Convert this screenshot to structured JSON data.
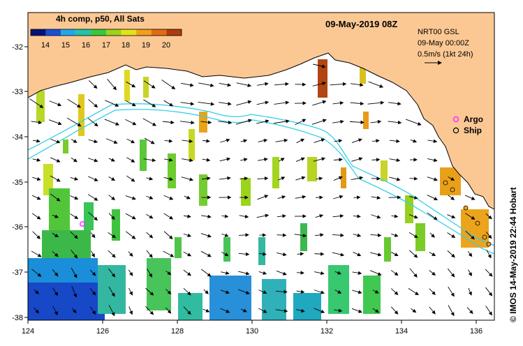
{
  "header": {
    "colorbar_title": "4h comp, p50, All Sats",
    "date_title": "09-May-2019 08Z"
  },
  "colorbar": {
    "ticks": [
      "14",
      "15",
      "16",
      "17",
      "18",
      "19",
      "20"
    ],
    "range": [
      13.5,
      21
    ],
    "colors": [
      "#08107a",
      "#1a4fd6",
      "#21a8e8",
      "#1fc6a8",
      "#38c83a",
      "#9ad41c",
      "#e2e21a",
      "#f0a01a",
      "#e26a10",
      "#b03a0e"
    ]
  },
  "vector_info": {
    "product": "NRT00 GSL",
    "date": "09-May 00:00Z",
    "scale": "0.5m/s (1kt 24h)"
  },
  "legend": {
    "argo": "Argo",
    "ship": "Ship",
    "argo_color": "#ff33ff",
    "ship_color": "#000000"
  },
  "axes": {
    "x_ticks": [
      "124",
      "126",
      "128",
      "130",
      "132",
      "134",
      "136"
    ],
    "y_ticks": [
      "-32",
      "-33",
      "-34",
      "-35",
      "-36",
      "-37",
      "-38"
    ],
    "xlim": [
      124,
      136.5
    ],
    "ylim": [
      -38.1,
      -31.3
    ]
  },
  "map": {
    "land_color": "#fbc894",
    "contour_color": "#35d0e8",
    "argo_floats": [
      {
        "lon": 125.5,
        "lat": -35.9
      }
    ]
  },
  "credit": "© IMOS 14-May-2019 22:44 Hobart"
}
